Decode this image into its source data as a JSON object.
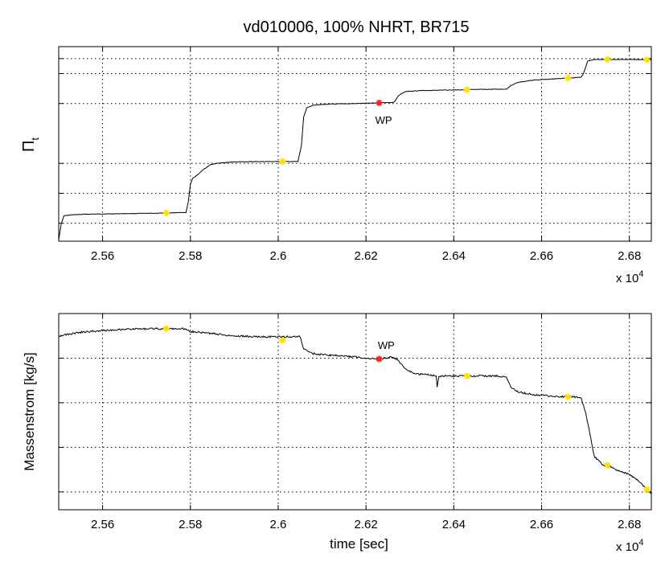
{
  "figure": {
    "title": "vd010006, 100% NHRT, BR715"
  },
  "chart_data": [
    {
      "type": "line",
      "ylabel_main": "Π",
      "ylabel_sub": "t",
      "xlabel": "",
      "x_multiplier_base": "x 10",
      "x_multiplier_exp": "4",
      "xlim": [
        2.55,
        2.685
      ],
      "ylim": [
        0,
        6.5
      ],
      "xticks": [
        2.56,
        2.58,
        2.6,
        2.62,
        2.64,
        2.66,
        2.68
      ],
      "xtick_labels": [
        "2.56",
        "2.58",
        "2.6",
        "2.62",
        "2.64",
        "2.66",
        "2.68"
      ],
      "yticks": [
        0.6,
        1.6,
        2.6,
        4.6,
        5.6,
        6.1
      ],
      "grid": true,
      "series": [
        {
          "color": "#000000",
          "x": [
            2.55,
            2.5506,
            2.5512,
            2.553,
            2.556,
            2.56,
            2.565,
            2.57,
            2.575,
            2.5772,
            2.579,
            2.5795,
            2.58,
            2.5805,
            2.5815,
            2.583,
            2.5845,
            2.586,
            2.59,
            2.595,
            2.6,
            2.6045,
            2.6053,
            2.6058,
            2.6065,
            2.608,
            2.612,
            2.618,
            2.622,
            2.624,
            2.626,
            2.6265,
            2.6275,
            2.629,
            2.632,
            2.638,
            2.643,
            2.646,
            2.652,
            2.653,
            2.6545,
            2.658,
            2.666,
            2.669,
            2.6695,
            2.6705,
            2.672,
            2.68,
            2.685
          ],
          "y": [
            0.05,
            0.6,
            0.85,
            0.88,
            0.9,
            0.91,
            0.92,
            0.93,
            0.94,
            0.96,
            0.96,
            1.3,
            1.9,
            2.1,
            2.2,
            2.4,
            2.55,
            2.6,
            2.65,
            2.66,
            2.66,
            2.66,
            3.2,
            4.15,
            4.45,
            4.55,
            4.58,
            4.6,
            4.62,
            4.63,
            4.63,
            4.65,
            4.88,
            5.0,
            5.03,
            5.05,
            5.06,
            5.07,
            5.08,
            5.2,
            5.3,
            5.38,
            5.45,
            5.48,
            5.58,
            6.02,
            6.07,
            6.07,
            6.06
          ]
        }
      ],
      "markers": [
        {
          "x": 2.5745,
          "y": 0.94,
          "color": "#ffe100"
        },
        {
          "x": 2.601,
          "y": 2.66,
          "color": "#ffe100"
        },
        {
          "x": 2.643,
          "y": 5.06,
          "color": "#ffe100"
        },
        {
          "x": 2.666,
          "y": 5.45,
          "color": "#ffe100"
        },
        {
          "x": 2.675,
          "y": 6.07,
          "color": "#ffe100"
        },
        {
          "x": 2.684,
          "y": 6.06,
          "color": "#ffe100"
        },
        {
          "x": 2.623,
          "y": 4.62,
          "color": "#ff2020"
        }
      ],
      "annotation": {
        "text": "WP",
        "x": 2.6232,
        "y": 4.05
      }
    },
    {
      "type": "line",
      "ylabel_main": "Massenstrom [kg/s]",
      "ylabel_sub": "",
      "xlabel": "time [sec]",
      "x_multiplier_base": "x 10",
      "x_multiplier_exp": "4",
      "xlim": [
        2.55,
        2.685
      ],
      "ylim": [
        0,
        4.4
      ],
      "xticks": [
        2.56,
        2.58,
        2.6,
        2.62,
        2.64,
        2.66,
        2.68
      ],
      "xtick_labels": [
        "2.56",
        "2.58",
        "2.6",
        "2.62",
        "2.64",
        "2.66",
        "2.68"
      ],
      "yticks": [
        0.4,
        1.4,
        2.4,
        3.4,
        4.4
      ],
      "grid": true,
      "series": [
        {
          "color": "#000000",
          "x": [
            2.55,
            2.555,
            2.56,
            2.565,
            2.57,
            2.575,
            2.579,
            2.58,
            2.585,
            2.59,
            2.595,
            2.6,
            2.605,
            2.6058,
            2.608,
            2.611,
            2.615,
            2.62,
            2.623,
            2.6255,
            2.627,
            2.629,
            2.631,
            2.635,
            2.636,
            2.6362,
            2.6366,
            2.64,
            2.645,
            2.65,
            2.652,
            2.653,
            2.6545,
            2.658,
            2.662,
            2.666,
            2.668,
            2.669,
            2.67,
            2.671,
            2.672,
            2.674,
            2.676,
            2.678,
            2.68,
            2.682,
            2.684,
            2.685
          ],
          "y": [
            3.9,
            3.98,
            4.02,
            4.05,
            4.06,
            4.06,
            4.06,
            4.0,
            3.95,
            3.9,
            3.88,
            3.88,
            3.88,
            3.6,
            3.5,
            3.47,
            3.45,
            3.4,
            3.38,
            3.42,
            3.38,
            3.15,
            3.05,
            3.02,
            3.0,
            2.75,
            3.0,
            3.0,
            3.0,
            3.0,
            2.97,
            2.75,
            2.65,
            2.58,
            2.55,
            2.53,
            2.53,
            2.5,
            2.2,
            1.7,
            1.2,
            1.0,
            0.95,
            0.85,
            0.8,
            0.65,
            0.45,
            0.35
          ]
        }
      ],
      "markers": [
        {
          "x": 2.5745,
          "y": 4.06,
          "color": "#ffe100"
        },
        {
          "x": 2.601,
          "y": 3.8,
          "color": "#ffe100"
        },
        {
          "x": 2.643,
          "y": 3.0,
          "color": "#ffe100"
        },
        {
          "x": 2.666,
          "y": 2.53,
          "color": "#ffe100"
        },
        {
          "x": 2.675,
          "y": 1.0,
          "color": "#ffe100"
        },
        {
          "x": 2.684,
          "y": 0.45,
          "color": "#ffe100"
        },
        {
          "x": 2.623,
          "y": 3.38,
          "color": "#ff2020"
        }
      ],
      "annotation": {
        "text": "WP",
        "x": 2.6238,
        "y": 3.7
      }
    }
  ]
}
